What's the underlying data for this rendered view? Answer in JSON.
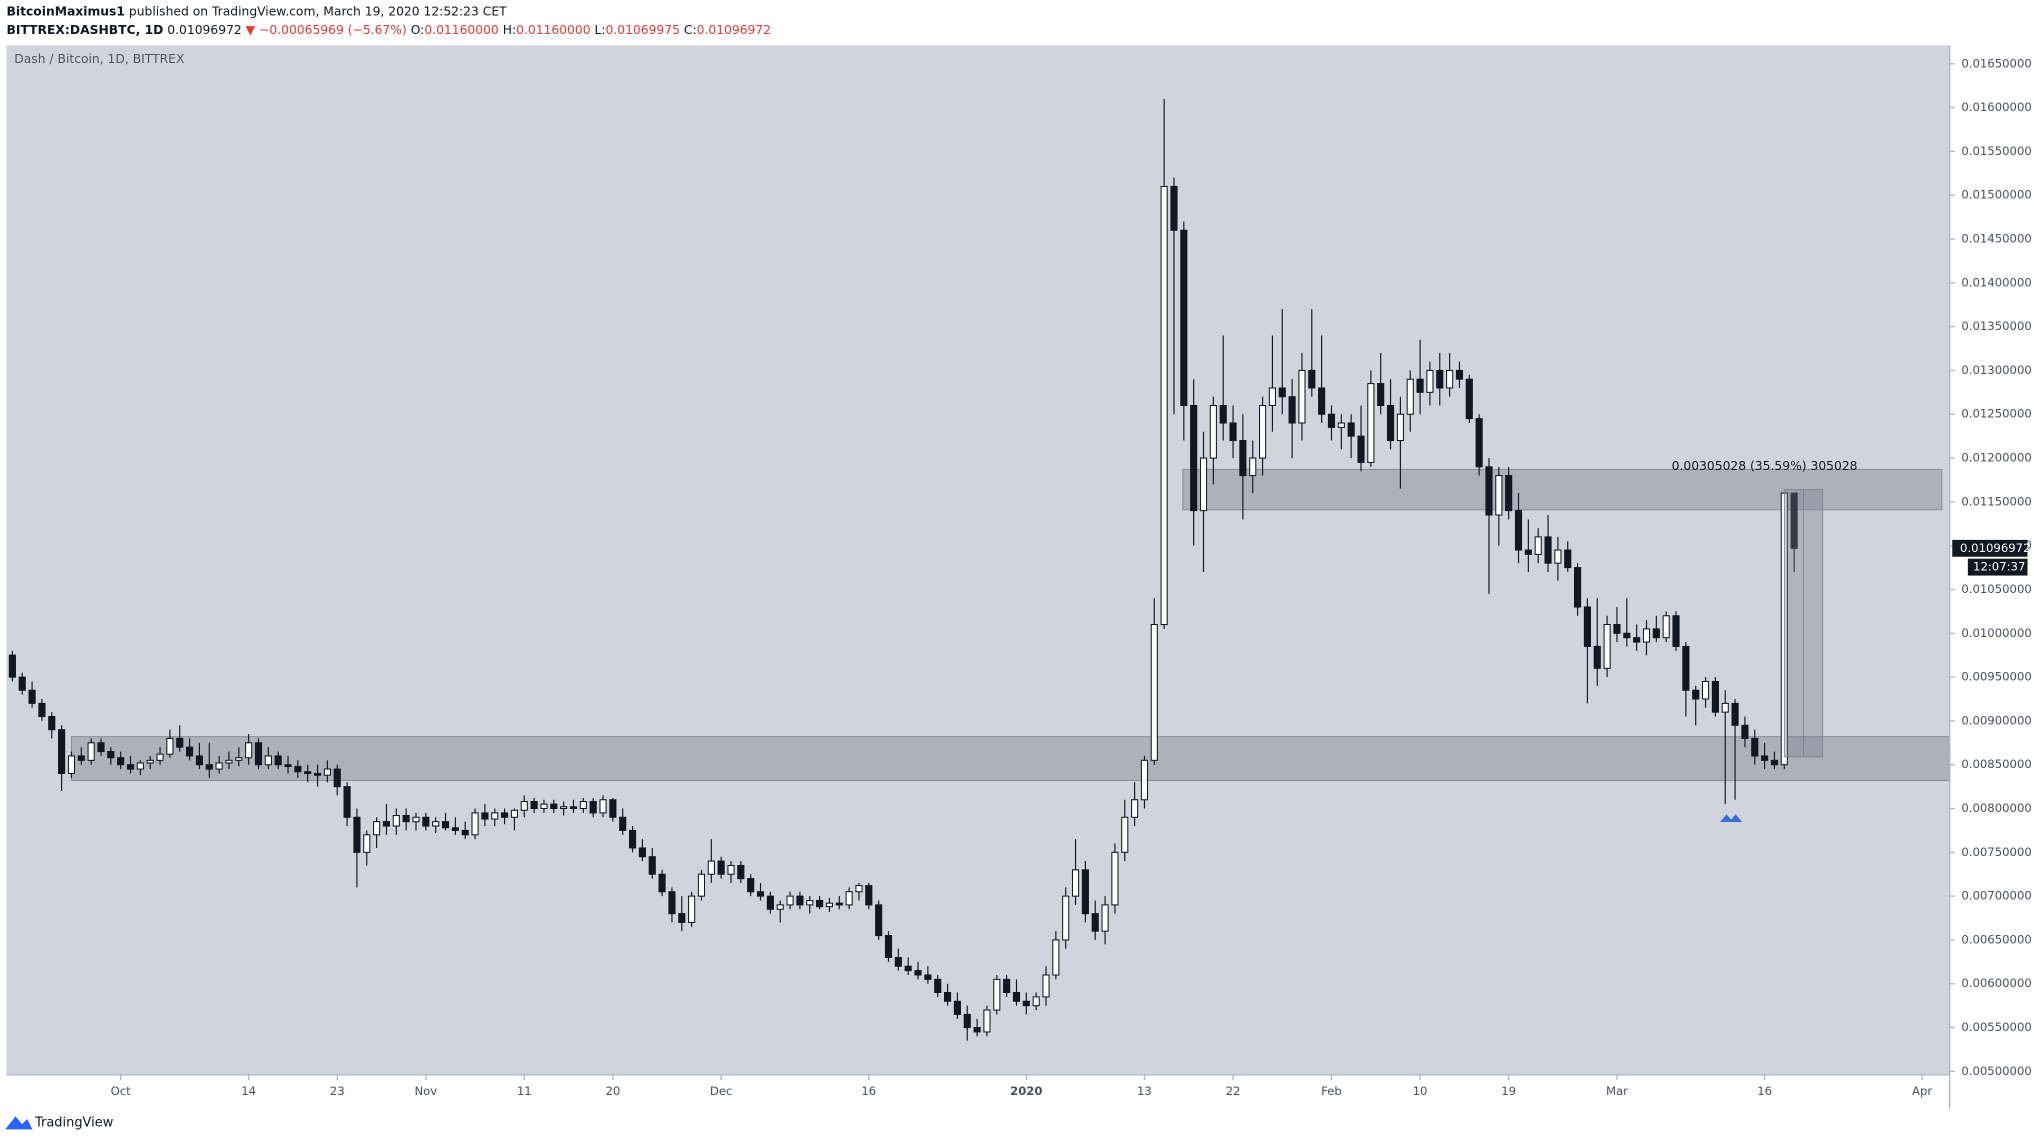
{
  "header": {
    "author": "BitcoinMaximus1",
    "published": "published on TradingView.com, March 19, 2020 12:52:23 CET",
    "symbol": "BITTREX:DASHBTC, 1D",
    "last": "0.01096972",
    "change": "▼ −0.00065969 (−5.67%)",
    "o_label": "O:",
    "open": "0.01160000",
    "h_label": "H:",
    "high": "0.01160000",
    "l_label": "L:",
    "low": "0.01069975",
    "c_label": "C:",
    "close": "0.01096972"
  },
  "footer": {
    "brand": "TradingView"
  },
  "chart_data": {
    "type": "candlestick",
    "title": "Dash / Bitcoin, 1D, BITTREX",
    "up_color": "#ffffff",
    "down_color": "#131722",
    "background": "#d1d4dc",
    "xlim": [
      -0.6,
      196.8
    ],
    "ylim": [
      0.00496,
      0.01671
    ],
    "xticks": [
      {
        "value": 11,
        "label": "Oct"
      },
      {
        "value": 24,
        "label": "14"
      },
      {
        "value": 33,
        "label": "23"
      },
      {
        "value": 42,
        "label": "Nov"
      },
      {
        "value": 52,
        "label": "11"
      },
      {
        "value": 61,
        "label": "20"
      },
      {
        "value": 72,
        "label": "Dec"
      },
      {
        "value": 87,
        "label": "16"
      },
      {
        "value": 103,
        "label": "2020"
      },
      {
        "value": 115,
        "label": "13"
      },
      {
        "value": 124,
        "label": "22"
      },
      {
        "value": 134,
        "label": "Feb"
      },
      {
        "value": 143,
        "label": "10"
      },
      {
        "value": 152,
        "label": "19"
      },
      {
        "value": 163,
        "label": "Mar"
      },
      {
        "value": 178,
        "label": "16"
      },
      {
        "value": 194,
        "label": "Apr"
      }
    ],
    "yticks": [
      {
        "value": 0.005,
        "label": "0.00500000"
      },
      {
        "value": 0.0055,
        "label": "0.00550000"
      },
      {
        "value": 0.006,
        "label": "0.00600000"
      },
      {
        "value": 0.0065,
        "label": "0.00650000"
      },
      {
        "value": 0.007,
        "label": "0.00700000"
      },
      {
        "value": 0.0075,
        "label": "0.00750000"
      },
      {
        "value": 0.008,
        "label": "0.00800000"
      },
      {
        "value": 0.0085,
        "label": "0.00850000"
      },
      {
        "value": 0.009,
        "label": "0.00900000"
      },
      {
        "value": 0.0095,
        "label": "0.00950000"
      },
      {
        "value": 0.01,
        "label": "0.01000000"
      },
      {
        "value": 0.0105,
        "label": "0.01050000"
      },
      {
        "value": 0.011,
        "label": "0.01100000"
      },
      {
        "value": 0.0115,
        "label": "0.01150000"
      },
      {
        "value": 0.012,
        "label": "0.01200000"
      },
      {
        "value": 0.0125,
        "label": "0.01250000"
      },
      {
        "value": 0.013,
        "label": "0.01300000"
      },
      {
        "value": 0.0135,
        "label": "0.01350000"
      },
      {
        "value": 0.014,
        "label": "0.01400000"
      },
      {
        "value": 0.0145,
        "label": "0.01450000"
      },
      {
        "value": 0.015,
        "label": "0.01500000"
      },
      {
        "value": 0.0155,
        "label": "0.01550000"
      },
      {
        "value": 0.016,
        "label": "0.01600000"
      },
      {
        "value": 0.0165,
        "label": "0.01650000"
      }
    ],
    "last_price": 0.01096972,
    "countdown": "12:07:37",
    "zones": [
      {
        "x0": 6.0,
        "x1": 196.8,
        "y0": 0.00832,
        "y1": 0.00882
      },
      {
        "x0": 118.9,
        "x1": 196.0,
        "y0": 0.01141,
        "y1": 0.01187
      }
    ],
    "measure": {
      "x0": 180.0,
      "x1": 183.9,
      "y0": 0.00859,
      "y1": 0.01164,
      "label": "0.00305028 (35.59%) 305028"
    },
    "candles": [
      [
        0.00975,
        0.0098,
        0.00945,
        0.0095
      ],
      [
        0.0095,
        0.00955,
        0.0093,
        0.00935
      ],
      [
        0.00935,
        0.00945,
        0.00915,
        0.0092
      ],
      [
        0.0092,
        0.00925,
        0.009,
        0.00905
      ],
      [
        0.00905,
        0.0091,
        0.0088,
        0.0089
      ],
      [
        0.0089,
        0.00895,
        0.0082,
        0.0084
      ],
      [
        0.0084,
        0.00865,
        0.00835,
        0.0086
      ],
      [
        0.0086,
        0.0087,
        0.0085,
        0.00855
      ],
      [
        0.00855,
        0.0088,
        0.0085,
        0.00875
      ],
      [
        0.00875,
        0.0088,
        0.0086,
        0.00865
      ],
      [
        0.00865,
        0.0087,
        0.0085,
        0.00858
      ],
      [
        0.00858,
        0.00865,
        0.00845,
        0.0085
      ],
      [
        0.0085,
        0.0086,
        0.0084,
        0.00845
      ],
      [
        0.00845,
        0.00855,
        0.00838,
        0.00852
      ],
      [
        0.00852,
        0.0086,
        0.00845,
        0.00855
      ],
      [
        0.00855,
        0.0087,
        0.0085,
        0.00862
      ],
      [
        0.00862,
        0.0089,
        0.00858,
        0.0088
      ],
      [
        0.0088,
        0.00895,
        0.00865,
        0.0087
      ],
      [
        0.0087,
        0.0088,
        0.00855,
        0.0086
      ],
      [
        0.0086,
        0.00875,
        0.00845,
        0.0085
      ],
      [
        0.0085,
        0.00875,
        0.00835,
        0.00845
      ],
      [
        0.00845,
        0.0086,
        0.0084,
        0.00852
      ],
      [
        0.00852,
        0.00865,
        0.00845,
        0.00855
      ],
      [
        0.00855,
        0.0087,
        0.00848,
        0.00858
      ],
      [
        0.00858,
        0.00885,
        0.0085,
        0.00875
      ],
      [
        0.00875,
        0.0088,
        0.00845,
        0.0085
      ],
      [
        0.0085,
        0.0087,
        0.00845,
        0.0086
      ],
      [
        0.0086,
        0.00865,
        0.00845,
        0.0085
      ],
      [
        0.0085,
        0.0086,
        0.0084,
        0.00848
      ],
      [
        0.00848,
        0.00855,
        0.00835,
        0.00842
      ],
      [
        0.00842,
        0.0085,
        0.0083,
        0.0084
      ],
      [
        0.0084,
        0.0085,
        0.00825,
        0.00838
      ],
      [
        0.00838,
        0.00855,
        0.0083,
        0.00845
      ],
      [
        0.00845,
        0.0085,
        0.00815,
        0.00825
      ],
      [
        0.00825,
        0.0083,
        0.0078,
        0.0079
      ],
      [
        0.0079,
        0.008,
        0.0071,
        0.0075
      ],
      [
        0.0075,
        0.00775,
        0.00735,
        0.0077
      ],
      [
        0.0077,
        0.0079,
        0.00755,
        0.00785
      ],
      [
        0.00785,
        0.00805,
        0.0077,
        0.0078
      ],
      [
        0.0078,
        0.008,
        0.0077,
        0.00792
      ],
      [
        0.00792,
        0.008,
        0.00775,
        0.00785
      ],
      [
        0.00785,
        0.00795,
        0.00775,
        0.0079
      ],
      [
        0.0079,
        0.00795,
        0.00775,
        0.0078
      ],
      [
        0.0078,
        0.0079,
        0.00772,
        0.00785
      ],
      [
        0.00785,
        0.00795,
        0.00775,
        0.00778
      ],
      [
        0.00778,
        0.0079,
        0.0077,
        0.00775
      ],
      [
        0.00775,
        0.00785,
        0.00765,
        0.0077
      ],
      [
        0.0077,
        0.008,
        0.00765,
        0.00795
      ],
      [
        0.00795,
        0.00805,
        0.0078,
        0.00788
      ],
      [
        0.00788,
        0.008,
        0.0078,
        0.00795
      ],
      [
        0.00795,
        0.008,
        0.00782,
        0.0079
      ],
      [
        0.0079,
        0.008,
        0.00775,
        0.00798
      ],
      [
        0.00798,
        0.00815,
        0.0079,
        0.00808
      ],
      [
        0.00808,
        0.00812,
        0.00795,
        0.008
      ],
      [
        0.008,
        0.0081,
        0.00795,
        0.00805
      ],
      [
        0.00805,
        0.0081,
        0.00795,
        0.008
      ],
      [
        0.008,
        0.00808,
        0.00792,
        0.00802
      ],
      [
        0.00802,
        0.0081,
        0.00795,
        0.008
      ],
      [
        0.008,
        0.00812,
        0.00795,
        0.00808
      ],
      [
        0.00808,
        0.00812,
        0.0079,
        0.00795
      ],
      [
        0.00795,
        0.00815,
        0.0079,
        0.0081
      ],
      [
        0.0081,
        0.00812,
        0.00785,
        0.0079
      ],
      [
        0.0079,
        0.008,
        0.0077,
        0.00775
      ],
      [
        0.00775,
        0.0078,
        0.0075,
        0.00755
      ],
      [
        0.00755,
        0.00765,
        0.0074,
        0.00745
      ],
      [
        0.00745,
        0.00755,
        0.0072,
        0.00725
      ],
      [
        0.00725,
        0.0073,
        0.007,
        0.00705
      ],
      [
        0.00705,
        0.0071,
        0.0067,
        0.0068
      ],
      [
        0.0068,
        0.007,
        0.0066,
        0.0067
      ],
      [
        0.0067,
        0.00705,
        0.00665,
        0.007
      ],
      [
        0.007,
        0.0073,
        0.00695,
        0.00725
      ],
      [
        0.00725,
        0.00765,
        0.00715,
        0.0074
      ],
      [
        0.0074,
        0.00745,
        0.0072,
        0.00725
      ],
      [
        0.00725,
        0.0074,
        0.00715,
        0.00735
      ],
      [
        0.00735,
        0.0074,
        0.00715,
        0.0072
      ],
      [
        0.0072,
        0.00725,
        0.007,
        0.00705
      ],
      [
        0.00705,
        0.00715,
        0.00695,
        0.007
      ],
      [
        0.007,
        0.00705,
        0.0068,
        0.00685
      ],
      [
        0.00685,
        0.00695,
        0.0067,
        0.0069
      ],
      [
        0.0069,
        0.00705,
        0.00685,
        0.007
      ],
      [
        0.007,
        0.00705,
        0.00685,
        0.0069
      ],
      [
        0.0069,
        0.007,
        0.0068,
        0.00695
      ],
      [
        0.00695,
        0.007,
        0.00685,
        0.00688
      ],
      [
        0.00688,
        0.00698,
        0.00682,
        0.00692
      ],
      [
        0.00692,
        0.007,
        0.00685,
        0.0069
      ],
      [
        0.0069,
        0.0071,
        0.00685,
        0.00705
      ],
      [
        0.00705,
        0.00715,
        0.00695,
        0.00712
      ],
      [
        0.00712,
        0.00715,
        0.00685,
        0.0069
      ],
      [
        0.0069,
        0.00695,
        0.0065,
        0.00655
      ],
      [
        0.00655,
        0.0066,
        0.00625,
        0.0063
      ],
      [
        0.0063,
        0.0064,
        0.00615,
        0.0062
      ],
      [
        0.0062,
        0.0063,
        0.0061,
        0.00615
      ],
      [
        0.00615,
        0.00625,
        0.00605,
        0.0061
      ],
      [
        0.0061,
        0.0062,
        0.006,
        0.00605
      ],
      [
        0.00605,
        0.0061,
        0.00585,
        0.0059
      ],
      [
        0.0059,
        0.006,
        0.00575,
        0.0058
      ],
      [
        0.0058,
        0.0059,
        0.0056,
        0.00565
      ],
      [
        0.00565,
        0.00575,
        0.00535,
        0.0055
      ],
      [
        0.0055,
        0.0056,
        0.0054,
        0.00545
      ],
      [
        0.00545,
        0.00575,
        0.0054,
        0.0057
      ],
      [
        0.0057,
        0.0061,
        0.00565,
        0.00605
      ],
      [
        0.00605,
        0.0061,
        0.00585,
        0.0059
      ],
      [
        0.0059,
        0.00605,
        0.00575,
        0.0058
      ],
      [
        0.0058,
        0.0059,
        0.00565,
        0.00575
      ],
      [
        0.00575,
        0.0059,
        0.0057,
        0.00585
      ],
      [
        0.00585,
        0.0062,
        0.00575,
        0.0061
      ],
      [
        0.0061,
        0.0066,
        0.00605,
        0.0065
      ],
      [
        0.0065,
        0.0071,
        0.0064,
        0.007
      ],
      [
        0.007,
        0.00765,
        0.0069,
        0.0073
      ],
      [
        0.0073,
        0.0074,
        0.0067,
        0.0068
      ],
      [
        0.0068,
        0.00695,
        0.0065,
        0.0066
      ],
      [
        0.0066,
        0.007,
        0.00645,
        0.0069
      ],
      [
        0.0069,
        0.0076,
        0.0068,
        0.0075
      ],
      [
        0.0075,
        0.0081,
        0.0074,
        0.0079
      ],
      [
        0.0079,
        0.0083,
        0.0078,
        0.0081
      ],
      [
        0.0081,
        0.0086,
        0.008,
        0.00855
      ],
      [
        0.00855,
        0.0104,
        0.0085,
        0.0101
      ],
      [
        0.0101,
        0.0161,
        0.01005,
        0.0151
      ],
      [
        0.0151,
        0.0152,
        0.0125,
        0.0146
      ],
      [
        0.0146,
        0.0147,
        0.0122,
        0.0126
      ],
      [
        0.0126,
        0.0129,
        0.011,
        0.0114
      ],
      [
        0.0114,
        0.0123,
        0.0107,
        0.012
      ],
      [
        0.012,
        0.0127,
        0.0117,
        0.0126
      ],
      [
        0.0126,
        0.0134,
        0.0122,
        0.0124
      ],
      [
        0.0124,
        0.0126,
        0.012,
        0.0122
      ],
      [
        0.0122,
        0.0125,
        0.0113,
        0.0118
      ],
      [
        0.0118,
        0.0122,
        0.0116,
        0.012
      ],
      [
        0.012,
        0.0127,
        0.0118,
        0.0126
      ],
      [
        0.0126,
        0.0134,
        0.0123,
        0.0128
      ],
      [
        0.0128,
        0.0137,
        0.0125,
        0.0127
      ],
      [
        0.0127,
        0.0129,
        0.012,
        0.0124
      ],
      [
        0.0124,
        0.0132,
        0.0122,
        0.013
      ],
      [
        0.013,
        0.0137,
        0.0127,
        0.0128
      ],
      [
        0.0128,
        0.0134,
        0.0124,
        0.0125
      ],
      [
        0.0125,
        0.0126,
        0.0122,
        0.01235
      ],
      [
        0.01235,
        0.0125,
        0.0121,
        0.0124
      ],
      [
        0.0124,
        0.0125,
        0.012,
        0.01225
      ],
      [
        0.01225,
        0.0126,
        0.01185,
        0.01195
      ],
      [
        0.01195,
        0.013,
        0.0119,
        0.01285
      ],
      [
        0.01285,
        0.0132,
        0.0125,
        0.0126
      ],
      [
        0.0126,
        0.0129,
        0.0121,
        0.0122
      ],
      [
        0.0122,
        0.0127,
        0.01165,
        0.0125
      ],
      [
        0.0125,
        0.013,
        0.0123,
        0.0129
      ],
      [
        0.0129,
        0.01335,
        0.0125,
        0.01275
      ],
      [
        0.01275,
        0.0131,
        0.0126,
        0.013
      ],
      [
        0.013,
        0.0132,
        0.0126,
        0.0128
      ],
      [
        0.0128,
        0.0132,
        0.0127,
        0.013
      ],
      [
        0.013,
        0.0131,
        0.0128,
        0.0129
      ],
      [
        0.0129,
        0.01295,
        0.0124,
        0.01245
      ],
      [
        0.01245,
        0.0125,
        0.0118,
        0.0119
      ],
      [
        0.0119,
        0.012,
        0.01045,
        0.01135
      ],
      [
        0.01135,
        0.0119,
        0.011,
        0.0118
      ],
      [
        0.0118,
        0.0119,
        0.0113,
        0.0114
      ],
      [
        0.0114,
        0.0116,
        0.0108,
        0.01095
      ],
      [
        0.01095,
        0.0113,
        0.0107,
        0.0109
      ],
      [
        0.0109,
        0.0112,
        0.0108,
        0.0111
      ],
      [
        0.0111,
        0.01135,
        0.0107,
        0.0108
      ],
      [
        0.0108,
        0.0111,
        0.0106,
        0.01095
      ],
      [
        0.01095,
        0.01105,
        0.0107,
        0.01075
      ],
      [
        0.01075,
        0.0108,
        0.0102,
        0.0103
      ],
      [
        0.0103,
        0.0104,
        0.0092,
        0.00985
      ],
      [
        0.00985,
        0.0104,
        0.0094,
        0.0096
      ],
      [
        0.0096,
        0.0102,
        0.0095,
        0.0101
      ],
      [
        0.0101,
        0.0103,
        0.0099,
        0.01
      ],
      [
        0.01,
        0.0104,
        0.00985,
        0.00995
      ],
      [
        0.00995,
        0.0101,
        0.0098,
        0.0099
      ],
      [
        0.0099,
        0.01015,
        0.00975,
        0.01005
      ],
      [
        0.01005,
        0.0102,
        0.0099,
        0.00995
      ],
      [
        0.00995,
        0.01025,
        0.0099,
        0.0102
      ],
      [
        0.0102,
        0.01025,
        0.0098,
        0.00985
      ],
      [
        0.00985,
        0.0099,
        0.00905,
        0.00935
      ],
      [
        0.00935,
        0.0094,
        0.00895,
        0.00925
      ],
      [
        0.00925,
        0.0095,
        0.00915,
        0.00945
      ],
      [
        0.00945,
        0.0095,
        0.00905,
        0.0091
      ],
      [
        0.0091,
        0.00935,
        0.00805,
        0.0092
      ],
      [
        0.0092,
        0.00925,
        0.0081,
        0.00895
      ],
      [
        0.00895,
        0.00905,
        0.0087,
        0.0088
      ],
      [
        0.0088,
        0.0089,
        0.0085,
        0.0086
      ],
      [
        0.0086,
        0.00875,
        0.00845,
        0.00855
      ],
      [
        0.00855,
        0.00865,
        0.00845,
        0.0085
      ],
      [
        0.0085,
        0.0116,
        0.00845,
        0.0116
      ],
      [
        0.0116,
        0.0116,
        0.01069975,
        0.01096972
      ]
    ]
  }
}
